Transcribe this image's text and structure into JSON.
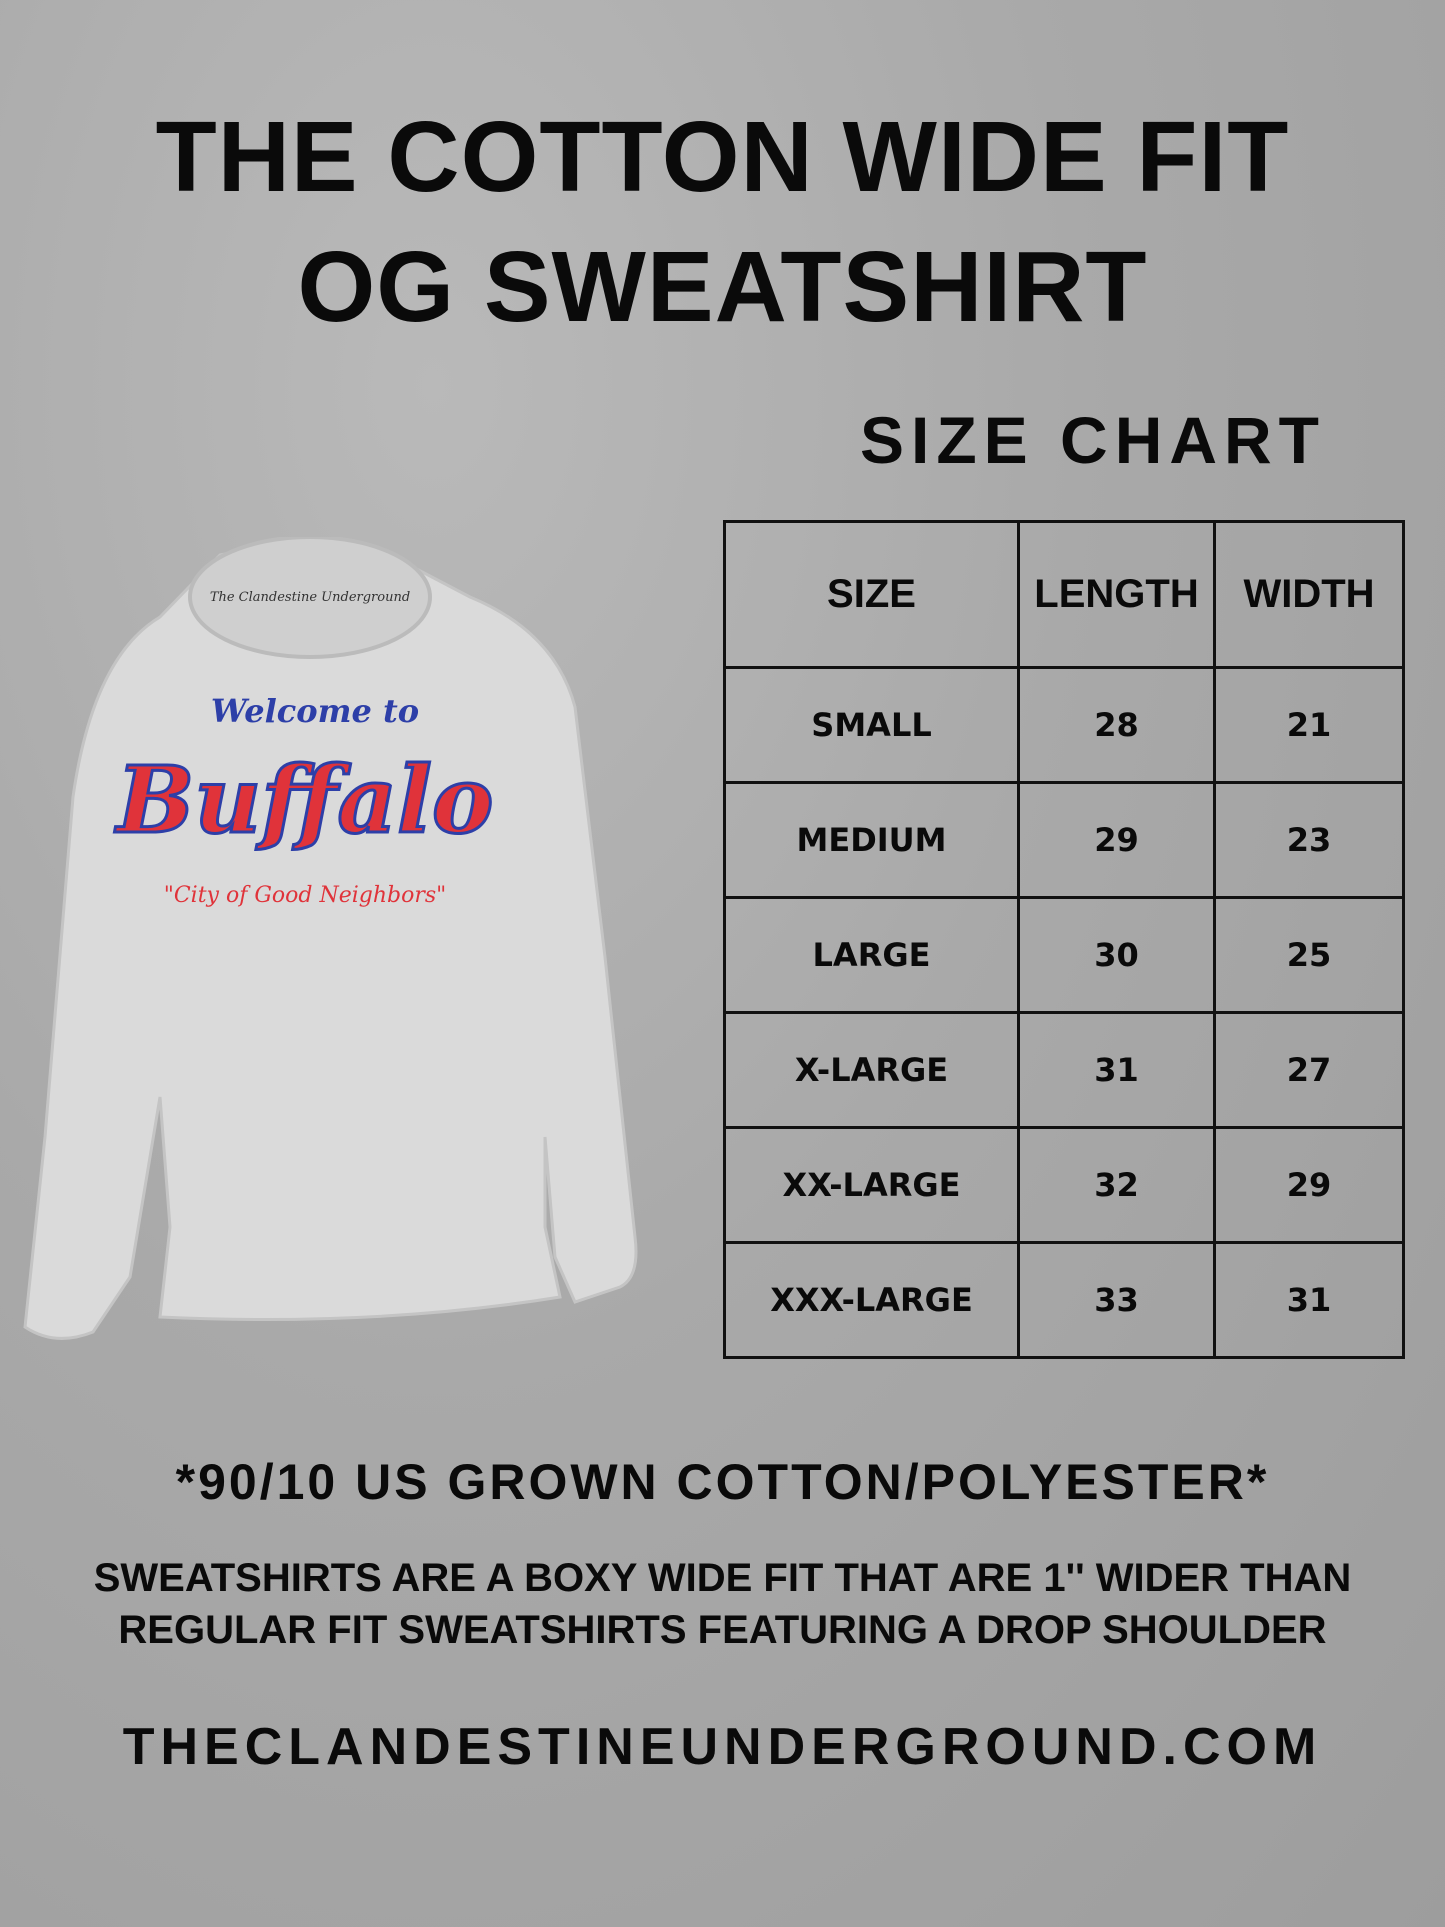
{
  "title": {
    "line1": "THE COTTON WIDE FIT",
    "line2": "OG SWEATSHIRT"
  },
  "size_chart_heading": "SIZE CHART",
  "table": {
    "headers": [
      "SIZE",
      "LENGTH",
      "WIDTH"
    ],
    "rows": [
      [
        "SMALL",
        "28",
        "21"
      ],
      [
        "MEDIUM",
        "29",
        "23"
      ],
      [
        "LARGE",
        "30",
        "25"
      ],
      [
        "X-LARGE",
        "31",
        "27"
      ],
      [
        "XX-LARGE",
        "32",
        "29"
      ],
      [
        "XXX-LARGE",
        "33",
        "31"
      ]
    ]
  },
  "shirt_print": {
    "top": "Welcome to",
    "main": "Buffalo",
    "tagline": "\"City of Good Neighbors\"",
    "label": "The Clandestine Underground"
  },
  "composition": "*90/10 US GROWN COTTON/POLYESTER*",
  "description": {
    "line1": "SWEATSHIRTS ARE A BOXY WIDE FIT THAT ARE 1'' WIDER THAN",
    "line2": "REGULAR FIT SWEATSHIRTS FEATURING A DROP SHOULDER"
  },
  "website": "THECLANDESTINEUNDERGROUND.COM",
  "colors": {
    "print_red": "#e0333a",
    "print_blue": "#2d3fa8",
    "shirt": "#dcdcdc"
  }
}
